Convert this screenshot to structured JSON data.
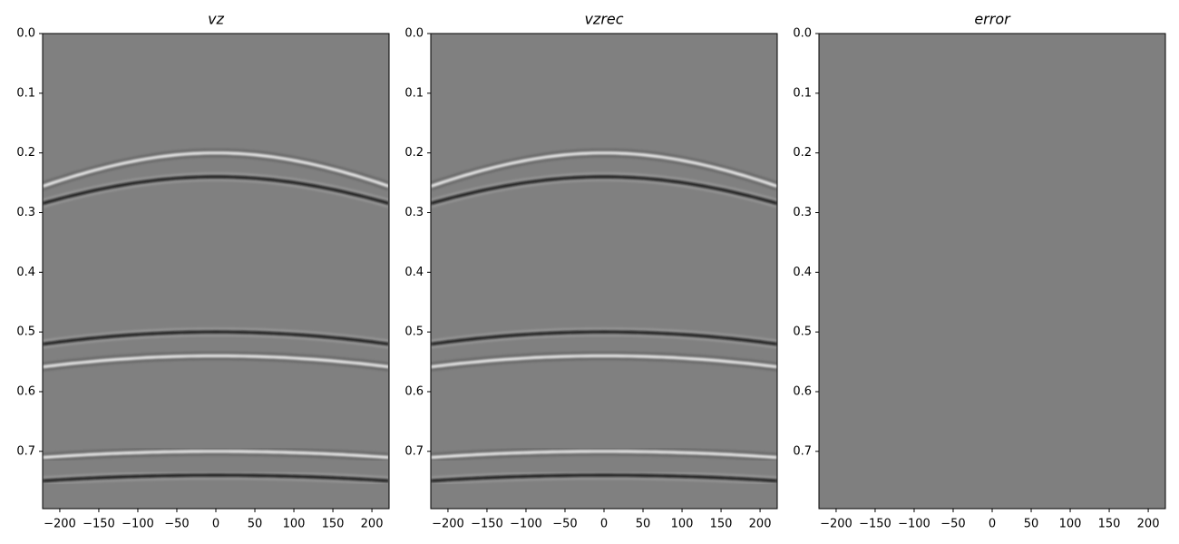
{
  "chart_data": [
    {
      "type": "image",
      "title": "vz",
      "background": "#808080",
      "xlim": [
        -222,
        222
      ],
      "ylim": [
        0.796,
        0
      ],
      "xticks": [
        {
          "value": -200,
          "label": "−200"
        },
        {
          "value": -150,
          "label": "−150"
        },
        {
          "value": -100,
          "label": "−100"
        },
        {
          "value": -50,
          "label": "−50"
        },
        0,
        50,
        100,
        150,
        200
      ],
      "yticks": [
        {
          "value": 0,
          "label": "0.0"
        },
        0.1,
        0.2,
        0.3,
        0.4,
        0.5,
        0.6,
        0.7
      ],
      "events": [
        {
          "t0": 0.2,
          "velocity": 1390,
          "polarity": 1
        },
        {
          "t0": 0.24,
          "velocity": 1450,
          "polarity": -1
        },
        {
          "t0": 0.5,
          "velocity": 1540,
          "polarity": -1
        },
        {
          "t0": 0.54,
          "velocity": 1560,
          "polarity": 1
        },
        {
          "t0": 0.7,
          "velocity": 1850,
          "polarity": 1
        },
        {
          "t0": 0.74,
          "velocity": 1870,
          "polarity": -1
        }
      ]
    },
    {
      "type": "image",
      "title": "vzrec",
      "background": "#808080",
      "xlim": [
        -222,
        222
      ],
      "ylim": [
        0.796,
        0
      ],
      "xticks": [
        {
          "value": -200,
          "label": "−200"
        },
        {
          "value": -150,
          "label": "−150"
        },
        {
          "value": -100,
          "label": "−100"
        },
        {
          "value": -50,
          "label": "−50"
        },
        0,
        50,
        100,
        150,
        200
      ],
      "yticks": [
        {
          "value": 0,
          "label": "0.0"
        },
        0.1,
        0.2,
        0.3,
        0.4,
        0.5,
        0.6,
        0.7
      ],
      "events": [
        {
          "t0": 0.2,
          "velocity": 1390,
          "polarity": 1
        },
        {
          "t0": 0.24,
          "velocity": 1450,
          "polarity": -1
        },
        {
          "t0": 0.5,
          "velocity": 1540,
          "polarity": -1
        },
        {
          "t0": 0.54,
          "velocity": 1560,
          "polarity": 1
        },
        {
          "t0": 0.7,
          "velocity": 1850,
          "polarity": 1
        },
        {
          "t0": 0.74,
          "velocity": 1870,
          "polarity": -1
        }
      ]
    },
    {
      "type": "image",
      "title": "error",
      "background": "#7f7f7f",
      "xlim": [
        -222,
        222
      ],
      "ylim": [
        0.796,
        0
      ],
      "xticks": [
        {
          "value": -200,
          "label": "−200"
        },
        {
          "value": -150,
          "label": "−150"
        },
        {
          "value": -100,
          "label": "−100"
        },
        {
          "value": -50,
          "label": "−50"
        },
        0,
        50,
        100,
        150,
        200
      ],
      "yticks": [
        {
          "value": 0,
          "label": "0.0"
        },
        0.1,
        0.2,
        0.3,
        0.4,
        0.5,
        0.6,
        0.7
      ],
      "events": []
    }
  ]
}
